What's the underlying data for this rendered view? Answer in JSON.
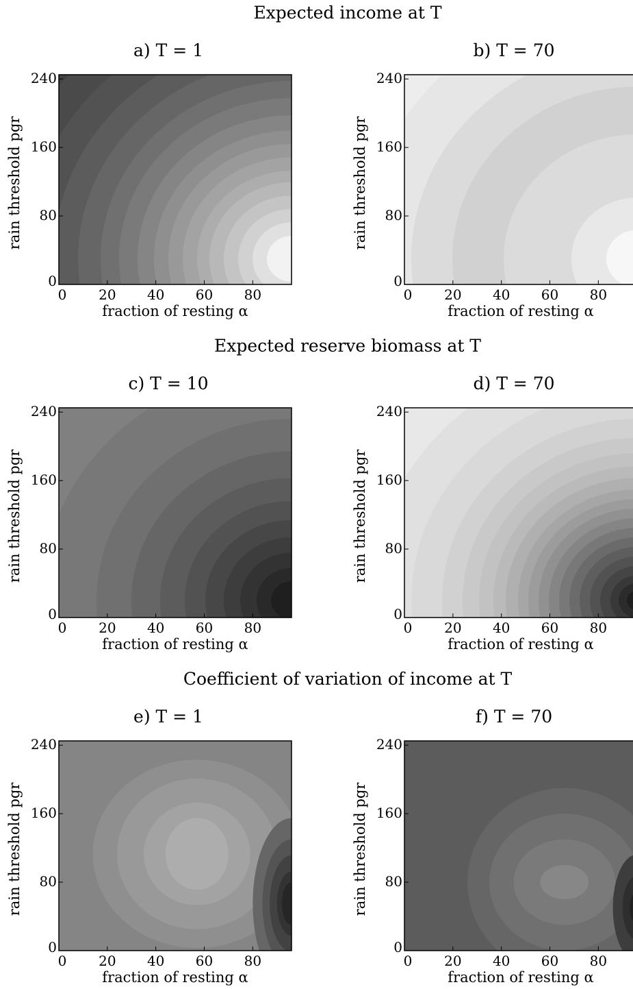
{
  "figure": {
    "row_titles": [
      "Expected income at T",
      "Expected reserve biomass at T",
      "Coefficient of variation of income at T"
    ]
  },
  "chart_data": [
    {
      "type": "heatmap",
      "panel": "a",
      "title": "a) T = 1",
      "xlabel": "fraction of resting α",
      "ylabel": "rain threshold pgr",
      "x_ticks": [
        0,
        20,
        40,
        60,
        80
      ],
      "y_ticks": [
        0,
        80,
        160,
        240
      ],
      "xlim": [
        0,
        96
      ],
      "ylim": [
        0,
        245
      ],
      "pattern": "radial",
      "center": [
        96,
        30
      ],
      "colormap": "gray",
      "gray_levels": [
        0.26,
        0.29,
        0.32,
        0.36,
        0.4,
        0.44,
        0.48,
        0.52,
        0.56,
        0.6,
        0.64,
        0.68,
        0.72,
        0.77,
        0.82,
        0.88,
        0.95
      ],
      "radii": [
        1.45,
        1.3,
        1.16,
        1.04,
        0.93,
        0.84,
        0.75,
        0.67,
        0.6,
        0.53,
        0.46,
        0.4,
        0.33,
        0.26,
        0.19,
        0.12
      ]
    },
    {
      "type": "heatmap",
      "panel": "b",
      "title": "b) T = 70",
      "xlabel": "fraction of resting α",
      "ylabel": "rain threshold pgr",
      "x_ticks": [
        0,
        20,
        40,
        60,
        80
      ],
      "y_ticks": [
        0,
        80,
        160,
        240
      ],
      "xlim": [
        0,
        96
      ],
      "ylim": [
        0,
        245
      ],
      "pattern": "radial",
      "center": [
        96,
        30
      ],
      "colormap": "gray",
      "gray_levels": [
        0.93,
        0.9,
        0.86,
        0.82,
        0.86,
        0.91,
        0.97
      ],
      "radii": [
        1.35,
        1.1,
        0.9,
        0.65,
        0.32,
        0.15
      ]
    },
    {
      "type": "heatmap",
      "panel": "c",
      "title": "c) T = 10",
      "xlabel": "fraction of resting α",
      "ylabel": "rain threshold pgr",
      "x_ticks": [
        0,
        20,
        40,
        60,
        80
      ],
      "y_ticks": [
        0,
        80,
        160,
        240
      ],
      "xlim": [
        0,
        96
      ],
      "ylim": [
        0,
        245
      ],
      "pattern": "radial",
      "center": [
        96,
        20
      ],
      "colormap": "gray",
      "gray_levels": [
        0.5,
        0.47,
        0.44,
        0.4,
        0.36,
        0.32,
        0.28,
        0.24,
        0.2,
        0.16,
        0.12
      ],
      "radii": [
        1.22,
        0.95,
        0.78,
        0.64,
        0.52,
        0.42,
        0.33,
        0.25,
        0.17,
        0.1
      ]
    },
    {
      "type": "heatmap",
      "panel": "d",
      "title": "d) T = 70",
      "xlabel": "fraction of resting α",
      "ylabel": "rain threshold pgr",
      "x_ticks": [
        0,
        20,
        40,
        60,
        80
      ],
      "y_ticks": [
        0,
        80,
        160,
        240
      ],
      "xlim": [
        0,
        96
      ],
      "ylim": [
        0,
        245
      ],
      "pattern": "radial",
      "center": [
        96,
        20
      ],
      "colormap": "gray",
      "gray_levels": [
        0.91,
        0.88,
        0.85,
        0.82,
        0.79,
        0.76,
        0.73,
        0.69,
        0.65,
        0.61,
        0.57,
        0.52,
        0.47,
        0.42,
        0.37,
        0.32,
        0.27,
        0.22,
        0.17,
        0.12
      ],
      "radii": [
        1.3,
        1.1,
        0.95,
        0.85,
        0.77,
        0.7,
        0.64,
        0.58,
        0.53,
        0.48,
        0.43,
        0.38,
        0.33,
        0.28,
        0.23,
        0.18,
        0.13,
        0.09,
        0.05
      ]
    },
    {
      "type": "heatmap",
      "panel": "e",
      "title": "e) T = 1",
      "xlabel": "fraction of resting α",
      "ylabel": "rain threshold pgr",
      "x_ticks": [
        0,
        20,
        40,
        60,
        80
      ],
      "y_ticks": [
        0,
        80,
        160,
        240
      ],
      "xlim": [
        0,
        96
      ],
      "ylim": [
        0,
        245
      ],
      "pattern": "blob",
      "colormap": "gray",
      "gray_levels": [
        0.52,
        0.56,
        0.6,
        0.64,
        0.68
      ],
      "blob_center": [
        57,
        113
      ],
      "blob_radii": [
        [
          43,
          110
        ],
        [
          33,
          88
        ],
        [
          22,
          60
        ],
        [
          13,
          42
        ]
      ],
      "dark_spot": {
        "center": [
          96,
          55
        ],
        "levels": [
          0.46,
          0.4,
          0.33,
          0.26,
          0.2,
          0.15
        ],
        "radii": [
          16,
          12,
          9,
          6,
          4
        ]
      }
    },
    {
      "type": "heatmap",
      "panel": "f",
      "title": "f) T = 70",
      "xlabel": "fraction of resting α",
      "ylabel": "rain threshold pgr",
      "x_ticks": [
        0,
        20,
        40,
        60,
        80
      ],
      "y_ticks": [
        0,
        80,
        160,
        240
      ],
      "xlim": [
        0,
        96
      ],
      "ylim": [
        0,
        245
      ],
      "pattern": "blob",
      "colormap": "gray",
      "gray_levels": [
        0.36,
        0.4,
        0.44,
        0.48,
        0.53
      ],
      "blob_center": [
        66,
        80
      ],
      "blob_radii": [
        [
          40,
          110
        ],
        [
          31,
          80
        ],
        [
          21,
          50
        ],
        [
          10,
          20
        ]
      ],
      "dark_spot": {
        "center": [
          96,
          50
        ],
        "levels": [
          0.3,
          0.24,
          0.18,
          0.13
        ],
        "radii": [
          10,
          6,
          3
        ]
      }
    }
  ]
}
